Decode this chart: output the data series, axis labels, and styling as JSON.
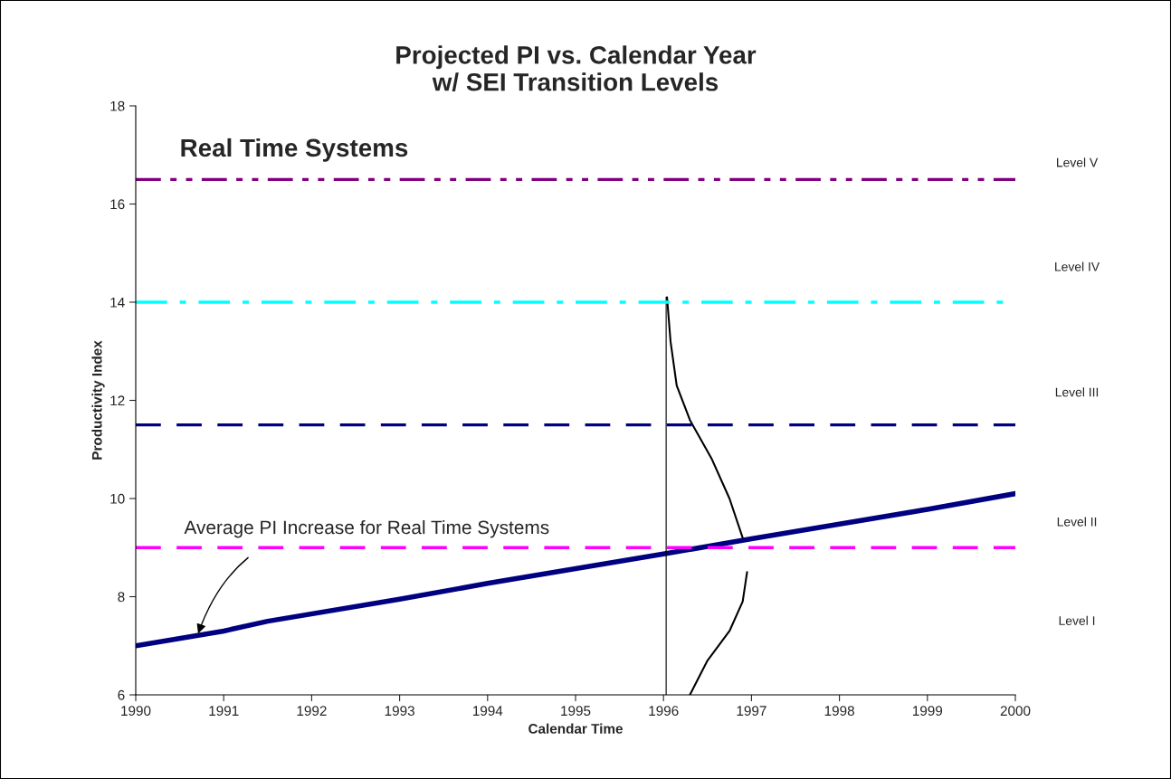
{
  "chart_data": {
    "type": "line",
    "title": "Projected PI vs. Calendar Year\nw/ SEI Transition Levels",
    "xlabel": "Calendar Time",
    "ylabel": "Productivity Index",
    "xlim": [
      1990,
      2000
    ],
    "xticks": [
      1990,
      1991,
      1992,
      1993,
      1994,
      1995,
      1996,
      1997,
      1998,
      1999,
      2000
    ],
    "ylim": [
      6,
      18
    ],
    "yticks": [
      6,
      8,
      10,
      12,
      14,
      16,
      18
    ],
    "grid": false,
    "legend": false,
    "marker": "none",
    "series": [
      {
        "color": "#000080",
        "x": [
          1990,
          1991,
          1991.5,
          1993,
          1994,
          1995,
          1996,
          1997,
          1998,
          1999,
          2000
        ],
        "values": [
          7.0,
          7.3,
          7.5,
          7.95,
          8.27,
          8.57,
          8.87,
          9.18,
          9.48,
          9.78,
          10.1
        ]
      },
      {
        "color": "#000000",
        "x": [
          1996.03,
          1996.03
        ],
        "values": [
          6,
          14.1
        ]
      },
      {
        "color": "#000000",
        "x": [
          1996.04,
          1996.08,
          1996.15,
          1996.3,
          1996.55,
          1996.75,
          1996.9,
          1996.93,
          1996.95,
          1996.9,
          1996.75,
          1996.5,
          1996.3
        ],
        "values": [
          14.1,
          13.2,
          12.3,
          11.6,
          10.8,
          10.0,
          9.2,
          null,
          8.5,
          7.9,
          7.3,
          6.7,
          6.0
        ]
      }
    ],
    "ref_lines": [
      {
        "axis": "y",
        "value": 16.5,
        "color": "#800080",
        "line_style": "dashdotdot"
      },
      {
        "axis": "y",
        "value": 14,
        "color": "#00ffff",
        "line_style": "dashdot"
      },
      {
        "axis": "y",
        "value": 11.5,
        "color": "#000080",
        "line_style": "dashed"
      },
      {
        "axis": "y",
        "value": 9,
        "color": "#ff00ff",
        "line_style": "dashed"
      }
    ],
    "annotations": [
      "Real Time Systems",
      "Level V",
      "Level IV",
      "Level III",
      "Level II",
      "Level I",
      {
        "text": "Average PI Increase for Real Time Systems",
        "x": 1990.7,
        "y": 7.2
      }
    ]
  }
}
